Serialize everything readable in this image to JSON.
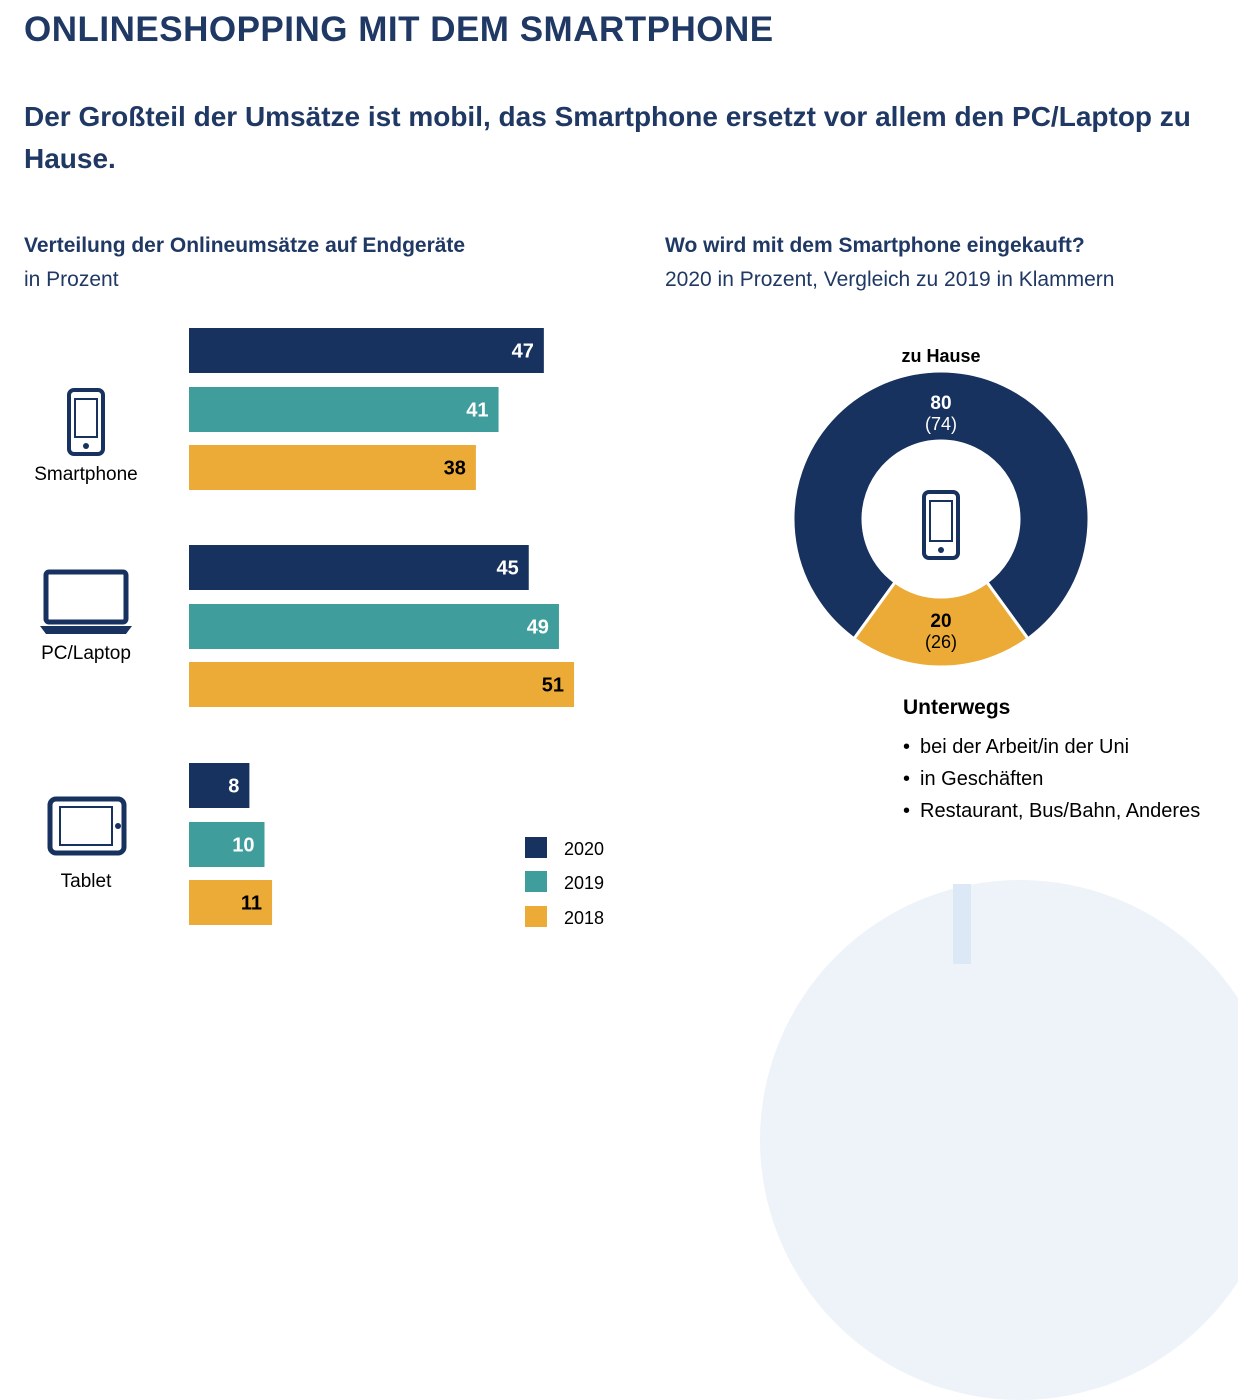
{
  "title": "ONLINESHOPPING MIT DEM SMARTPHONE",
  "subtitle": "Der Großteil der Umsätze ist mobil, das Smartphone ersetzt vor allem den PC/Laptop zu Hause.",
  "colors": {
    "navy": "#17325f",
    "teal": "#3f9e9b",
    "yellow": "#ebab36",
    "text": "#1f3864"
  },
  "chart_data": [
    {
      "type": "bar",
      "orientation": "horizontal",
      "title": "Verteilung der Onlineumsätze auf Endgeräte",
      "subtitle": "in Prozent",
      "categories": [
        "Smartphone",
        "PC/Laptop",
        "Tablet"
      ],
      "category_icons": [
        "smartphone-icon",
        "laptop-icon",
        "tablet-icon"
      ],
      "series": [
        {
          "name": "2020",
          "color": "#17325f",
          "values": [
            47,
            45,
            8
          ]
        },
        {
          "name": "2019",
          "color": "#3f9e9b",
          "values": [
            41,
            49,
            10
          ]
        },
        {
          "name": "2018",
          "color": "#ebab36",
          "values": [
            38,
            51,
            11
          ]
        }
      ],
      "data_labels": true,
      "legend": "bottom-right"
    },
    {
      "type": "pie",
      "style": "donut",
      "title": "Wo wird mit dem Smartphone eingekauft?",
      "subtitle": "2020 in Prozent, Vergleich zu 2019 in Klammern",
      "center_icon": "smartphone-icon",
      "slices": [
        {
          "label": "zu Hause",
          "value": 80,
          "previous_label": "(74)",
          "color": "#17325f"
        },
        {
          "label": "Unterwegs",
          "value": 20,
          "previous_label": "(26)",
          "color": "#ebab36"
        }
      ]
    }
  ],
  "unterwegs": {
    "heading": "Unterwegs",
    "items": [
      "bei der Arbeit/in der Uni",
      "in Geschäften",
      "Restaurant, Bus/Bahn, Anderes"
    ]
  }
}
